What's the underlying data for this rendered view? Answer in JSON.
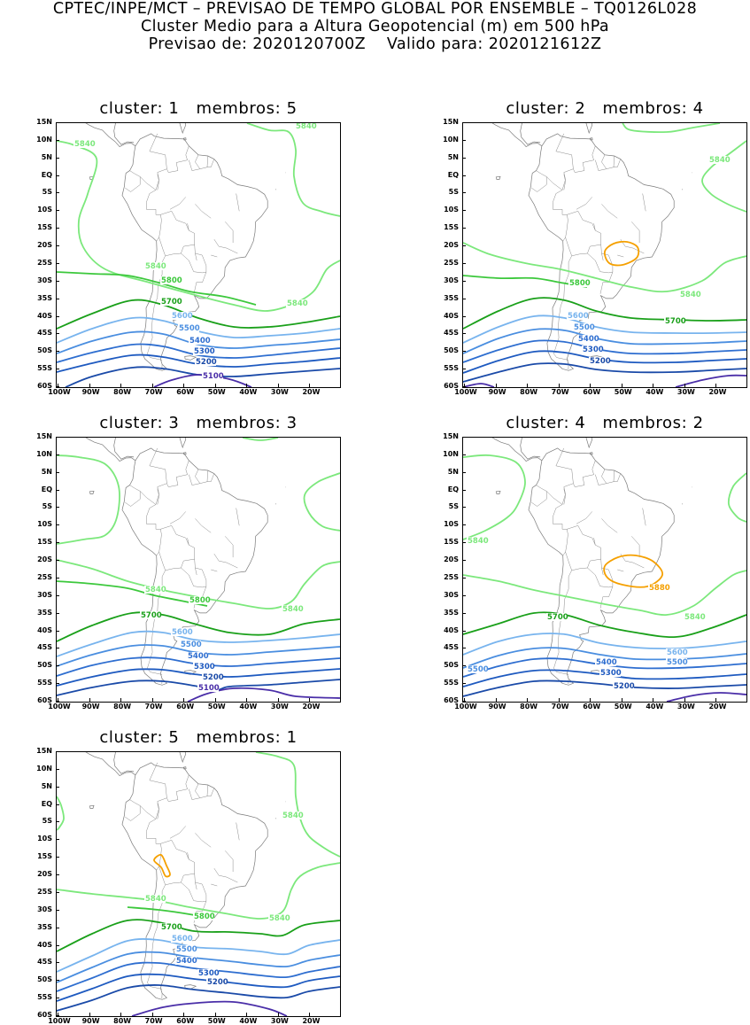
{
  "header": {
    "line1": "CPTEC/INPE/MCT – PREVISAO DE TEMPO GLOBAL POR ENSEMBLE – TQ0126L028",
    "line2": "Cluster Medio para a Altura Geopotencial (m) em 500 hPa",
    "line3": "Previsao de: 2020120700Z    Valido para: 2020121612Z"
  },
  "axes": {
    "lat_labels": [
      "15N",
      "10N",
      "5N",
      "EQ",
      "5S",
      "10S",
      "15S",
      "20S",
      "25S",
      "30S",
      "35S",
      "40S",
      "45S",
      "50S",
      "55S",
      "60S"
    ],
    "lon_labels": [
      "100W",
      "90W",
      "80W",
      "70W",
      "60W",
      "50W",
      "40W",
      "30W",
      "20W"
    ]
  },
  "contour_colors": {
    "5880": "#f5a000",
    "5840": "#7ce87c",
    "5800": "#3cc83c",
    "5700": "#1aa01a",
    "5600": "#78b4ee",
    "5500": "#4a8ee0",
    "5400": "#2e6ed0",
    "5300": "#1e5ac0",
    "5200": "#1a4aa8",
    "5100": "#4a2ea8"
  },
  "panels": [
    {
      "title": "cluster: 1   membros: 5",
      "labels": [
        {
          "text": "5840",
          "level": "5840"
        },
        {
          "text": "5840",
          "level": "5840"
        },
        {
          "text": "5840",
          "level": "5840"
        },
        {
          "text": "5840",
          "level": "5840"
        },
        {
          "text": "5800",
          "level": "5800"
        },
        {
          "text": "5700",
          "level": "5700"
        },
        {
          "text": "5600",
          "level": "5600"
        },
        {
          "text": "5500",
          "level": "5500"
        },
        {
          "text": "5400",
          "level": "5400"
        },
        {
          "text": "5300",
          "level": "5300"
        },
        {
          "text": "5200",
          "level": "5200"
        },
        {
          "text": "5100",
          "level": "5100"
        }
      ]
    },
    {
      "title": "cluster: 2   membros: 4",
      "labels": [
        {
          "text": "5840",
          "level": "5840"
        },
        {
          "text": "5840",
          "level": "5840"
        },
        {
          "text": "5800",
          "level": "5800"
        },
        {
          "text": "5700",
          "level": "5700"
        },
        {
          "text": "5600",
          "level": "5600"
        },
        {
          "text": "5500",
          "level": "5500"
        },
        {
          "text": "5400",
          "level": "5400"
        },
        {
          "text": "5300",
          "level": "5300"
        },
        {
          "text": "5200",
          "level": "5200"
        }
      ]
    },
    {
      "title": "cluster: 3   membros: 3",
      "labels": [
        {
          "text": "5840",
          "level": "5840"
        },
        {
          "text": "5840",
          "level": "5840"
        },
        {
          "text": "5800",
          "level": "5800"
        },
        {
          "text": "5700",
          "level": "5700"
        },
        {
          "text": "5600",
          "level": "5600"
        },
        {
          "text": "5500",
          "level": "5500"
        },
        {
          "text": "5400",
          "level": "5400"
        },
        {
          "text": "5300",
          "level": "5300"
        },
        {
          "text": "5200",
          "level": "5200"
        },
        {
          "text": "5100",
          "level": "5100"
        }
      ]
    },
    {
      "title": "cluster: 4   membros: 2",
      "labels": [
        {
          "text": "5840",
          "level": "5840"
        },
        {
          "text": "5880",
          "level": "5880"
        },
        {
          "text": "5840",
          "level": "5840"
        },
        {
          "text": "5700",
          "level": "5700"
        },
        {
          "text": "5600",
          "level": "5600"
        },
        {
          "text": "5500",
          "level": "5500"
        },
        {
          "text": "5500",
          "level": "5500"
        },
        {
          "text": "5400",
          "level": "5400"
        },
        {
          "text": "5300",
          "level": "5300"
        },
        {
          "text": "5200",
          "level": "5200"
        }
      ]
    },
    {
      "title": "cluster: 5   membros: 1",
      "labels": [
        {
          "text": "5840",
          "level": "5840"
        },
        {
          "text": "5840",
          "level": "5840"
        },
        {
          "text": "5840",
          "level": "5840"
        },
        {
          "text": "5800",
          "level": "5800"
        },
        {
          "text": "5700",
          "level": "5700"
        },
        {
          "text": "5600",
          "level": "5600"
        },
        {
          "text": "5500",
          "level": "5500"
        },
        {
          "text": "5400",
          "level": "5400"
        },
        {
          "text": "5300",
          "level": "5300"
        },
        {
          "text": "5200",
          "level": "5200"
        }
      ]
    }
  ]
}
